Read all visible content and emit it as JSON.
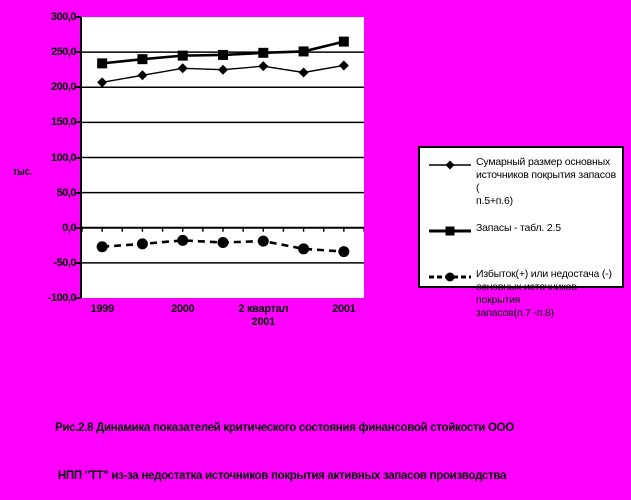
{
  "background_color": "#ff00ff",
  "plot_bg_color": "#ffffff",
  "line_color": "#000000",
  "chart_data": {
    "type": "line",
    "title": "",
    "xlabel": "",
    "ylabel": "тыс.",
    "ylim": [
      -100,
      300
    ],
    "grid": true,
    "legend_position": "right",
    "y_ticks": [
      {
        "label": "300,0",
        "value": 300
      },
      {
        "label": "250,0",
        "value": 250
      },
      {
        "label": "200,0",
        "value": 200
      },
      {
        "label": "150,0",
        "value": 150
      },
      {
        "label": "100,0",
        "value": 100
      },
      {
        "label": "50,0",
        "value": 50
      },
      {
        "label": "0,0",
        "value": 0
      },
      {
        "label": "-50,0",
        "value": -50
      },
      {
        "label": "-100,0",
        "value": -100
      }
    ],
    "categories": [
      "1999",
      "",
      "2000",
      "",
      "2 квартал 2001",
      "",
      "2001"
    ],
    "x_labels": [
      {
        "lines": [
          "1999"
        ],
        "cat": 0
      },
      {
        "lines": [
          "2000"
        ],
        "cat": 2
      },
      {
        "lines": [
          "2 квартал",
          "2001"
        ],
        "cat": 4
      },
      {
        "lines": [
          "2001"
        ],
        "cat": 6
      }
    ],
    "series": [
      {
        "name": "Сумарный размер основных источников покрытия запасов ( п.5+п.6)",
        "marker": "diamond",
        "line": "solid",
        "values": [
          207,
          217,
          227,
          225,
          230,
          221,
          231
        ]
      },
      {
        "name": "Запасы - табл. 2.5",
        "marker": "square",
        "line": "solid",
        "values": [
          234,
          240,
          245,
          246,
          249,
          251,
          265
        ]
      },
      {
        "name": "Избыток(+) или недостача (-) основных источников покрытия запасов(п.7 -п.8)",
        "marker": "circle",
        "line": "dashed",
        "values": [
          -27,
          -23,
          -18,
          -21,
          -19,
          -30,
          -34
        ]
      }
    ]
  },
  "legend": {
    "items": [
      {
        "marker": "diamond",
        "line": "solid-thin",
        "label_lines": [
          "Сумарный размер основных",
          "источников покрытия запасов (",
          "п.5+п.6)"
        ]
      },
      {
        "marker": "square",
        "line": "solid-thick",
        "label_lines": [
          "Запасы - табл. 2.5"
        ]
      },
      {
        "marker": "circle",
        "line": "dashed",
        "label_lines": [
          "Избыток(+) или недостача (-)",
          "основных источников покрытия",
          "запасов(п.7 -п.8)"
        ]
      }
    ]
  },
  "caption": {
    "line1": "Рис.2.8 Динамика показателей критического состояния финансовой стойкости ООО",
    "line2": " НПП \"ТТ\" из-за недостатка источников покрытия активных запасов производства"
  }
}
